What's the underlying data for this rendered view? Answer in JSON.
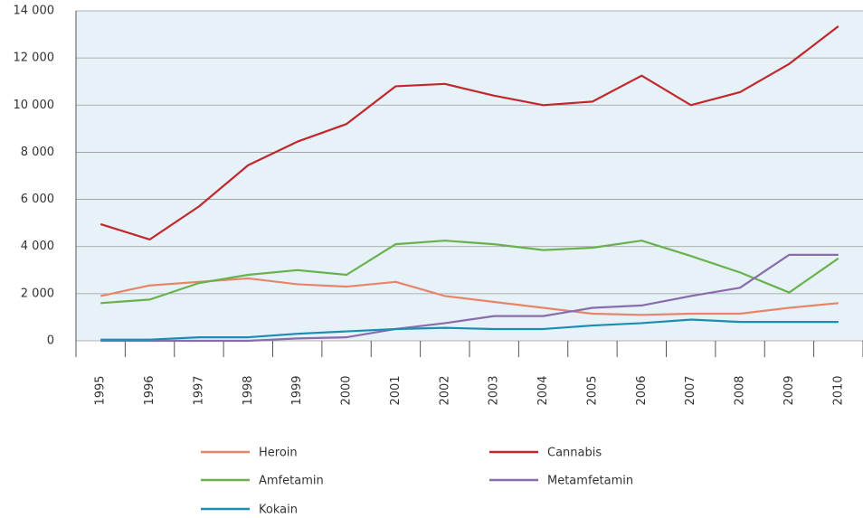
{
  "chart_data": {
    "type": "line",
    "categories": [
      "1995",
      "1996",
      "1997",
      "1998",
      "1999",
      "2000",
      "2001",
      "2002",
      "2003",
      "2004",
      "2005",
      "2006",
      "2007",
      "2008",
      "2009",
      "2010"
    ],
    "series": [
      {
        "name": "Heroin",
        "color": "#e8846a",
        "values": [
          1900,
          2350,
          2500,
          2650,
          2400,
          2300,
          2500,
          1900,
          1650,
          1400,
          1150,
          1100,
          1150,
          1150,
          1400,
          1600
        ]
      },
      {
        "name": "Cannabis",
        "color": "#c1272d",
        "values": [
          4950,
          4300,
          5700,
          7450,
          8450,
          9200,
          10800,
          10900,
          10400,
          10000,
          10150,
          11250,
          10000,
          10550,
          11750,
          13350
        ]
      },
      {
        "name": "Amfetamin",
        "color": "#6ab04c",
        "values": [
          1600,
          1750,
          2450,
          2800,
          3000,
          2800,
          4100,
          4250,
          4100,
          3850,
          3950,
          4250,
          3600,
          2900,
          2050,
          3500
        ]
      },
      {
        "name": "Metamfetamin",
        "color": "#8a6bab",
        "values": [
          0,
          0,
          0,
          0,
          100,
          150,
          500,
          750,
          1050,
          1050,
          1400,
          1500,
          1900,
          2250,
          3650,
          3650
        ]
      },
      {
        "name": "Kokain",
        "color": "#1b8db3",
        "values": [
          50,
          50,
          150,
          150,
          300,
          400,
          500,
          550,
          500,
          500,
          650,
          750,
          900,
          800,
          800,
          800
        ]
      }
    ],
    "ylim": [
      0,
      14000
    ],
    "yticks": [
      0,
      {
        "value": 2000,
        "label": "2 000"
      },
      {
        "value": 4000,
        "label": "4 000"
      },
      {
        "value": 6000,
        "label": "6 000"
      },
      {
        "value": 8000,
        "label": "8 000"
      },
      {
        "value": 10000,
        "label": "10 000"
      },
      {
        "value": 12000,
        "label": "12 000"
      },
      {
        "value": 14000,
        "label": "14 000"
      }
    ],
    "grid": true
  }
}
